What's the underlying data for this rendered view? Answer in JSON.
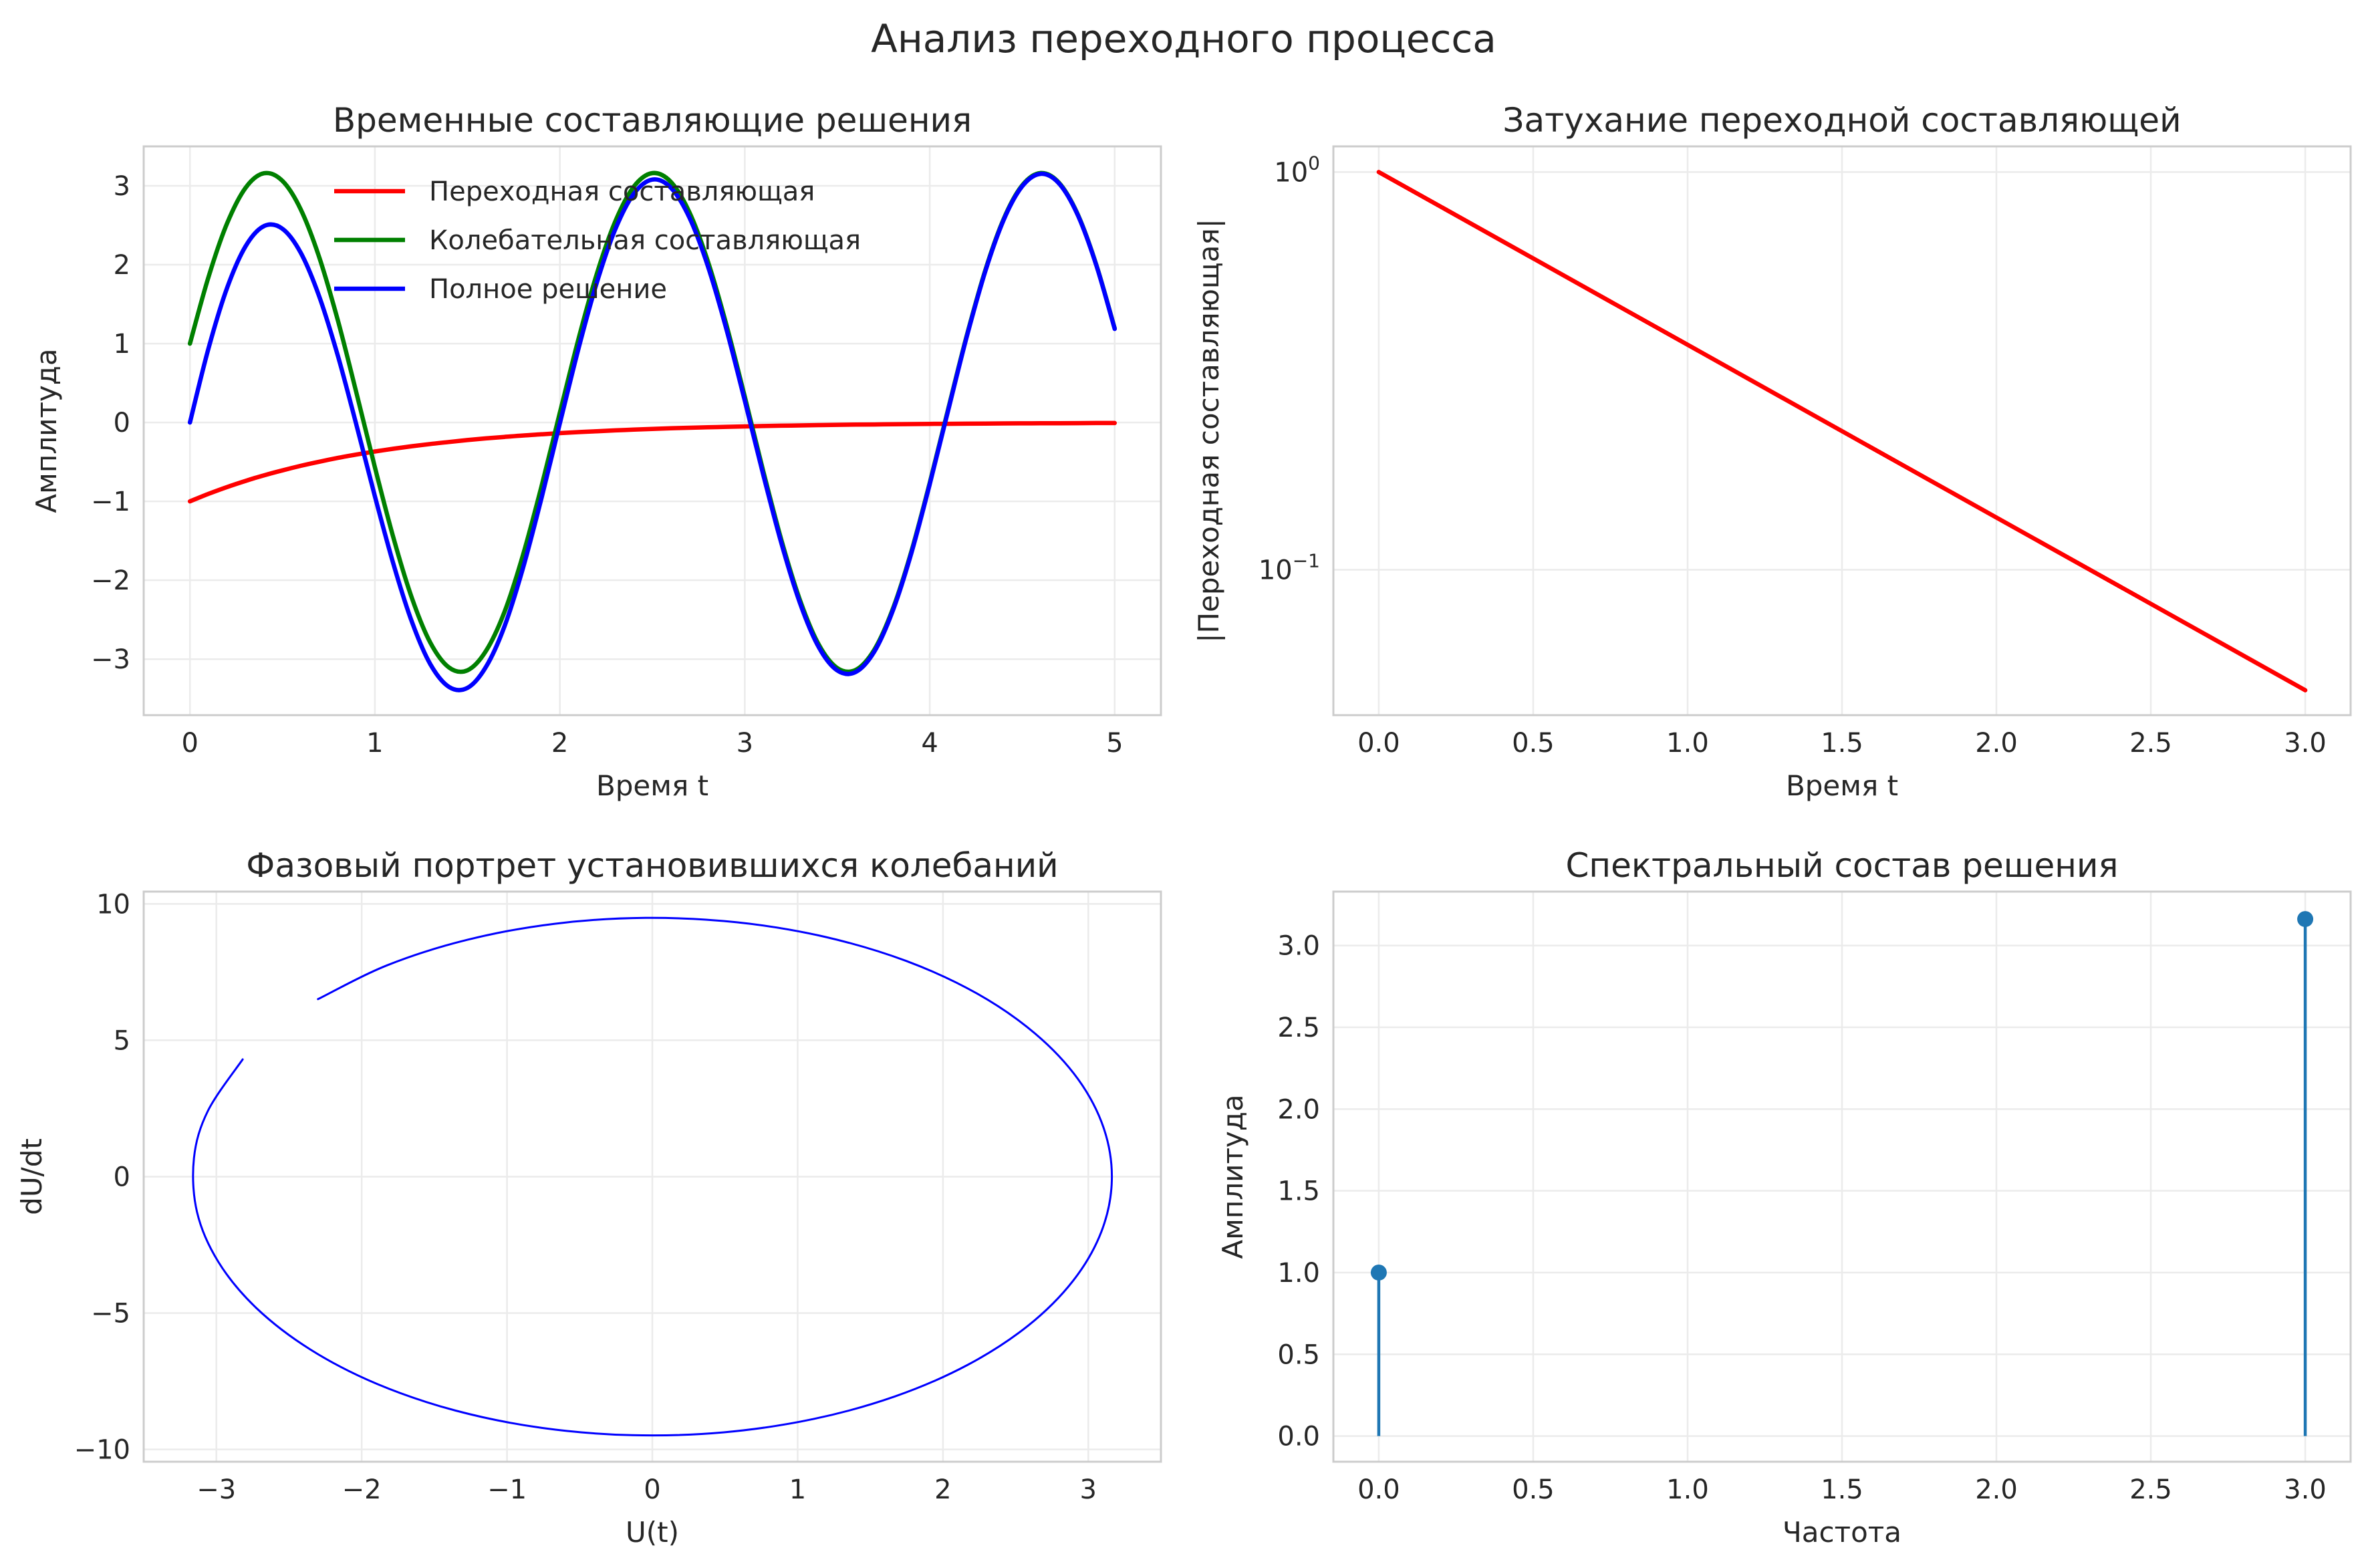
{
  "suptitle": "Анализ переходного процесса",
  "colors": {
    "grid": "#ebebeb",
    "spine": "#cccccc",
    "text": "#262626"
  },
  "chart_data": [
    {
      "type": "line",
      "title": "Временные составляющие решения",
      "xlabel": "Время t",
      "ylabel": "Амплитуда",
      "xlim": [
        -0.25,
        5.25
      ],
      "ylim": [
        -3.71,
        3.5
      ],
      "xticks": [
        0,
        1,
        2,
        3,
        4,
        5
      ],
      "xtick_labels": [
        "0",
        "1",
        "2",
        "3",
        "4",
        "5"
      ],
      "yticks": [
        -3,
        -2,
        -1,
        0,
        1,
        2,
        3
      ],
      "ytick_labels": [
        "−3",
        "−2",
        "−1",
        "0",
        "1",
        "2",
        "3"
      ],
      "grid": true,
      "legend": "upper-center",
      "x": [
        0,
        0.1,
        0.2,
        0.3,
        0.4,
        0.5,
        0.6,
        0.7,
        0.8,
        0.9,
        1.0,
        1.1,
        1.2,
        1.3,
        1.4,
        1.5,
        1.6,
        1.7,
        1.8,
        1.9,
        2.0,
        2.1,
        2.2,
        2.3,
        2.4,
        2.5,
        2.6,
        2.7,
        2.8,
        2.9,
        3.0,
        3.1,
        3.2,
        3.3,
        3.4,
        3.5,
        3.6,
        3.7,
        3.8,
        3.9,
        4.0,
        4.1,
        4.2,
        4.3,
        4.4,
        4.5,
        4.6,
        4.7,
        4.8,
        4.9,
        5.0
      ],
      "series": [
        {
          "name": "Переходная составляющая",
          "color": "#ff0000",
          "values": [
            -1.0,
            -0.905,
            -0.819,
            -0.741,
            -0.67,
            -0.607,
            -0.549,
            -0.497,
            -0.449,
            -0.407,
            -0.368,
            -0.333,
            -0.301,
            -0.273,
            -0.247,
            -0.223,
            -0.202,
            -0.183,
            -0.165,
            -0.15,
            -0.135,
            -0.122,
            -0.111,
            -0.1,
            -0.091,
            -0.082,
            -0.074,
            -0.067,
            -0.061,
            -0.055,
            -0.05,
            -0.045,
            -0.041,
            -0.037,
            -0.033,
            -0.03,
            -0.027,
            -0.025,
            -0.022,
            -0.02,
            -0.018,
            -0.017,
            -0.015,
            -0.014,
            -0.012,
            -0.011,
            -0.01,
            -0.009,
            -0.008,
            -0.007,
            -0.007
          ]
        },
        {
          "name": "Колебательная составляющая",
          "color": "#008000",
          "values": [
            1.0,
            1.842,
            2.519,
            2.972,
            3.159,
            3.063,
            2.697,
            2.088,
            1.292,
            0.378,
            -0.567,
            -1.46,
            -2.226,
            -2.792,
            -3.104,
            -3.142,
            -2.899,
            -2.406,
            -1.686,
            -0.816,
            0.122,
            1.051,
            1.885,
            2.551,
            2.99,
            3.161,
            3.05,
            2.668,
            2.046,
            1.242,
            0.325,
            -0.619,
            -1.508,
            -2.263,
            -2.816,
            -3.113,
            -3.136,
            -2.881,
            -2.366,
            -1.641,
            -0.765,
            0.175,
            1.1,
            1.927,
            2.582,
            3.006,
            3.162,
            3.036,
            2.639,
            2.004,
            1.193
          ]
        },
        {
          "name": "Полное решение",
          "color": "#0000ff",
          "values": [
            0.0,
            0.937,
            1.7,
            2.231,
            2.489,
            2.456,
            2.148,
            1.591,
            0.843,
            -0.029,
            -0.935,
            -1.793,
            -2.527,
            -3.065,
            -3.351,
            -3.365,
            -3.101,
            -2.589,
            -1.851,
            -0.966,
            -0.013,
            0.929,
            1.774,
            2.451,
            2.899,
            3.079,
            2.976,
            2.601,
            1.985,
            1.187,
            0.275,
            -0.664,
            -1.549,
            -2.3,
            -2.849,
            -3.143,
            -3.163,
            -2.906,
            -2.388,
            -1.661,
            -0.783,
            0.158,
            1.085,
            1.913,
            2.57,
            2.995,
            3.152,
            3.027,
            2.631,
            1.997,
            1.186
          ]
        }
      ]
    },
    {
      "type": "line",
      "title": "Затухание переходной составляющей",
      "xlabel": "Время t",
      "ylabel": "|Переходная составляющая|",
      "yscale": "log",
      "xlim": [
        -0.147,
        3.147
      ],
      "ylim": [
        0.0431,
        1.16
      ],
      "xticks": [
        0,
        0.5,
        1,
        1.5,
        2,
        2.5,
        3
      ],
      "xtick_labels": [
        "0.0",
        "0.5",
        "1.0",
        "1.5",
        "2.0",
        "2.5",
        "3.0"
      ],
      "yticks": [
        1,
        0.1
      ],
      "ytick_labels": [
        {
          "base": "10",
          "exp": "0"
        },
        {
          "base": "10",
          "exp": "−1"
        }
      ],
      "grid": true,
      "x": [
        0,
        0.5,
        1,
        1.5,
        2,
        2.5,
        3
      ],
      "series": [
        {
          "color": "#ff0000",
          "values": [
            1.0,
            0.6065,
            0.3679,
            0.2231,
            0.1353,
            0.0821,
            0.0498
          ]
        }
      ]
    },
    {
      "type": "line",
      "title": "Фазовый портрет установившихся колебаний",
      "xlabel": "U(t)",
      "ylabel": "dU/dt",
      "xlim": [
        -3.5,
        3.5
      ],
      "ylim": [
        -10.45,
        10.45
      ],
      "xticks": [
        -3,
        -2,
        -1,
        0,
        1,
        2,
        3
      ],
      "xtick_labels": [
        "−3",
        "−2",
        "−1",
        "0",
        "1",
        "2",
        "3"
      ],
      "yticks": [
        -10,
        -5,
        0,
        5,
        10
      ],
      "ytick_labels": [
        "−10",
        "−5",
        "0",
        "5",
        "10"
      ],
      "grid": true,
      "series": [
        {
          "color": "#0000ff",
          "x": [
            -2.301,
            -1.824,
            -1.275,
            -0.675,
            -0.047,
            0.582,
            1.187,
            1.747,
            2.235,
            2.634,
            2.93,
            3.108,
            3.162,
            3.09,
            2.895,
            2.585,
            2.171,
            1.671,
            1.106,
            0.493,
            -0.137,
            -0.76,
            -1.353,
            -1.891,
            -2.353,
            -2.723,
            -2.986,
            -3.133,
            -3.154,
            -3.058,
            -2.819
          ],
          "values": [
            6.507,
            7.749,
            8.682,
            9.269,
            9.486,
            9.325,
            8.793,
            7.909,
            6.712,
            5.247,
            3.571,
            1.75,
            -0.135,
            -2.017,
            -3.818,
            -5.466,
            -6.898,
            -8.054,
            -8.888,
            -9.371,
            -9.478,
            -9.209,
            -8.575,
            -7.605,
            -6.337,
            -4.824,
            -3.126,
            -1.298,
            0.681,
            2.414,
            4.301
          ]
        }
      ]
    },
    {
      "type": "stem",
      "title": "Спектральный состав решения",
      "xlabel": "Частота",
      "ylabel": "Амплитуда",
      "xlim": [
        -0.147,
        3.147
      ],
      "ylim": [
        -0.157,
        3.33
      ],
      "xticks": [
        0,
        0.5,
        1,
        1.5,
        2,
        2.5,
        3
      ],
      "xtick_labels": [
        "0.0",
        "0.5",
        "1.0",
        "1.5",
        "2.0",
        "2.5",
        "3.0"
      ],
      "yticks": [
        0,
        0.5,
        1,
        1.5,
        2,
        2.5,
        3
      ],
      "ytick_labels": [
        "0.0",
        "0.5",
        "1.0",
        "1.5",
        "2.0",
        "2.5",
        "3.0"
      ],
      "grid": true,
      "x": [
        0,
        3
      ],
      "series": [
        {
          "color": "#1f77b4",
          "values": [
            1.0,
            3.162
          ]
        }
      ]
    }
  ]
}
